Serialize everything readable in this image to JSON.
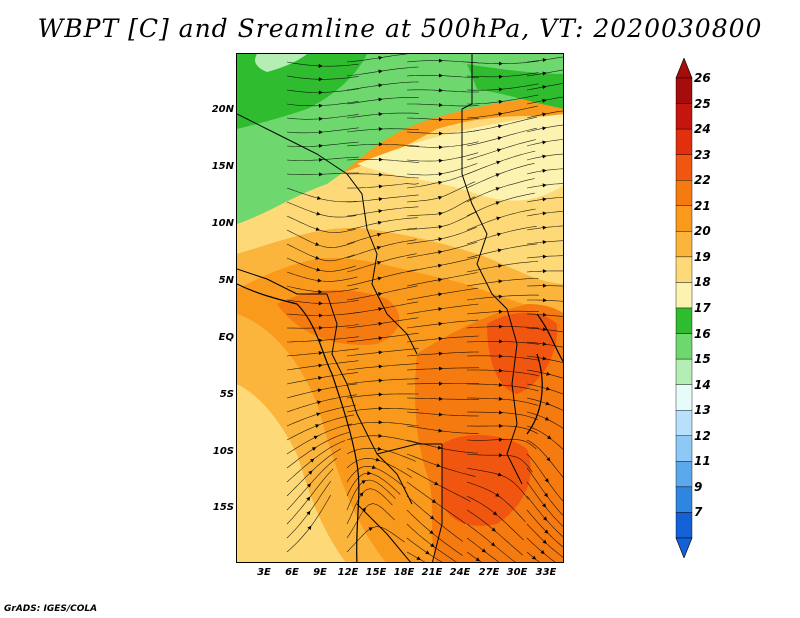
{
  "title": "WBPT [C] and Sreamline at 500hPa, VT: 2020030800",
  "credit": "GrADS: IGES/COLA",
  "latitude_labels": [
    "20N",
    "15N",
    "10N",
    "5N",
    "EQ",
    "5S",
    "10S",
    "15S"
  ],
  "longitude_labels": [
    "3E",
    "6E",
    "9E",
    "12E",
    "15E",
    "18E",
    "21E",
    "24E",
    "27E",
    "30E",
    "33E"
  ],
  "colorbar": {
    "labels": [
      "26",
      "25",
      "24",
      "23",
      "22",
      "21",
      "20",
      "19",
      "18",
      "17",
      "16",
      "15",
      "14",
      "13",
      "12",
      "11",
      "9",
      "7"
    ],
    "colors": [
      "#a50d0d",
      "#c4150e",
      "#e1300e",
      "#f0560f",
      "#f57a10",
      "#f99a1c",
      "#fbb53d",
      "#fdd978",
      "#fdf3b0",
      "#2fbc2f",
      "#6ed86e",
      "#b5eeb5",
      "#e8fbfb",
      "#b8e0fb",
      "#8ec9f5",
      "#5aa9ec",
      "#2f86e0",
      "#1460d6"
    ]
  },
  "map": {
    "colors": {
      "green_dark": "#2fbc2f",
      "green": "#6ed86e",
      "green_light": "#b5eeb5",
      "yellow_pale": "#fdf3b0",
      "yellow": "#fdd978",
      "orange_light": "#fbb53d",
      "orange": "#f99a1c",
      "orange_dark": "#f57a10",
      "red_orange": "#f0560f"
    }
  }
}
